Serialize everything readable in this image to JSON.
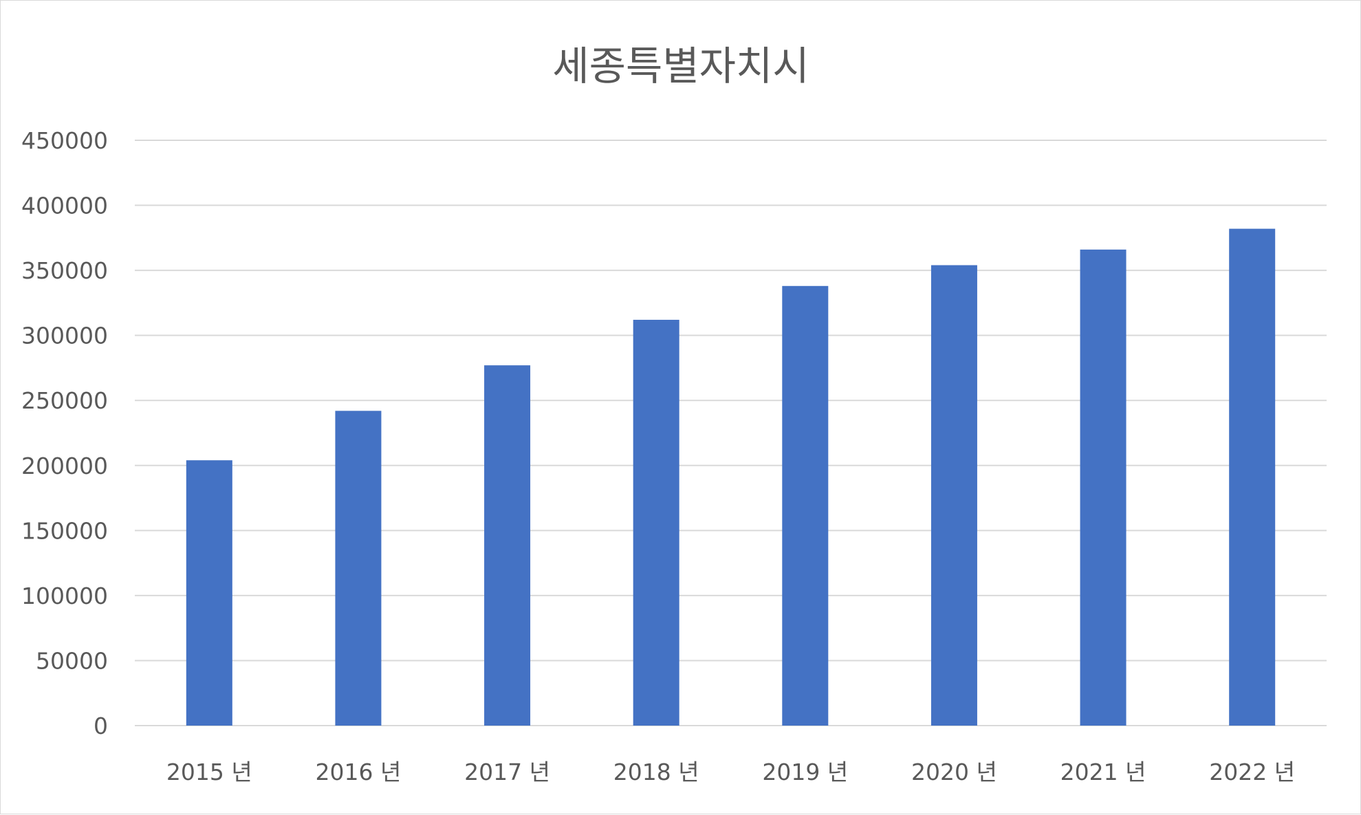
{
  "chart_data": {
    "type": "bar",
    "title": "세종특별자치시",
    "xlabel": "",
    "ylabel": "",
    "categories": [
      "2015 년",
      "2016 년",
      "2017 년",
      "2018 년",
      "2019 년",
      "2020 년",
      "2021 년",
      "2022 년"
    ],
    "series": [
      {
        "values": [
          204000,
          242000,
          277000,
          312000,
          338000,
          354000,
          366000,
          382000
        ]
      }
    ],
    "ylim": [
      0,
      450000
    ],
    "yticks": [
      0,
      50000,
      100000,
      150000,
      200000,
      250000,
      300000,
      350000,
      400000,
      450000
    ],
    "ytick_labels": [
      "0",
      "50000",
      "100000",
      "150000",
      "200000",
      "250000",
      "300000",
      "350000",
      "400000",
      "450000"
    ],
    "grid": true,
    "legend": "none",
    "colors": {
      "bar": "#4472C4",
      "grid": "#D9D9D9",
      "text": "#595959"
    }
  }
}
